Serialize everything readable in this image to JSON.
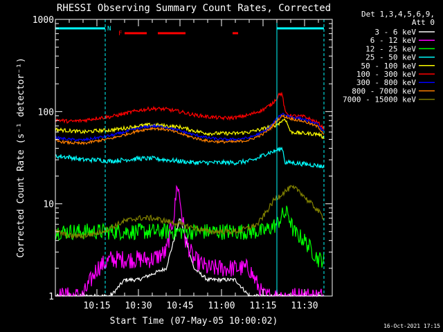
{
  "chart_data": {
    "type": "line",
    "title": "RHESSI Observing Summary Count Rates, Corrected",
    "xlabel": "Start Time (07-May-05 10:00:02)",
    "ylabel": "Corrected Count Rate (s⁻¹ detector⁻¹)",
    "y_scale": "log",
    "ylim": [
      1,
      1000
    ],
    "xlim_minutes": [
      0,
      100
    ],
    "y_ticks": [
      "1",
      "10",
      "100",
      "1000"
    ],
    "x_ticks": [
      {
        "label": "10:15",
        "m": 15
      },
      {
        "label": "10:30",
        "m": 30
      },
      {
        "label": "10:45",
        "m": 45
      },
      {
        "label": "11:00",
        "m": 60
      },
      {
        "label": "11:15",
        "m": 75
      },
      {
        "label": "11:30",
        "m": 90
      }
    ],
    "legend_header": [
      "Det 1,3,4,5,6,9,",
      "Att 0"
    ],
    "footer": "16-Oct-2021 17:15",
    "annotations": {
      "night_label": "N",
      "flare_label": "F"
    },
    "night_segments": [
      [
        0,
        18
      ],
      [
        80,
        97
      ]
    ],
    "flare_segments": [
      [
        25,
        33
      ],
      [
        37,
        47
      ],
      [
        64,
        66
      ]
    ],
    "series": [
      {
        "name": "3 - 6 keV",
        "color": "#ffffff",
        "x": [
          0,
          10,
          15,
          20,
          25,
          30,
          40,
          45,
          50,
          55,
          60,
          65,
          70,
          75,
          80,
          85,
          90,
          95,
          97
        ],
        "y": [
          1,
          1,
          1,
          1,
          1.5,
          1.5,
          2,
          7,
          2,
          1.5,
          1.5,
          1.5,
          1,
          1,
          1,
          1,
          1,
          1,
          1
        ]
      },
      {
        "name": "6 - 12 keV",
        "color": "#ff00ff",
        "x": [
          0,
          10,
          15,
          20,
          25,
          30,
          35,
          40,
          43,
          44,
          45,
          47,
          50,
          55,
          60,
          65,
          70,
          75,
          80,
          85,
          90,
          95,
          97
        ],
        "y": [
          1,
          1,
          2,
          2.5,
          2.5,
          2.5,
          2.5,
          3,
          8,
          17,
          11,
          4,
          2.5,
          2,
          2,
          2,
          2,
          1,
          1,
          1,
          1,
          1,
          1
        ]
      },
      {
        "name": "12 - 25 keV",
        "color": "#00ff00",
        "x": [
          0,
          10,
          15,
          20,
          25,
          30,
          35,
          40,
          45,
          50,
          55,
          60,
          65,
          70,
          75,
          80,
          82,
          84,
          86,
          90,
          95,
          97
        ],
        "y": [
          5,
          5,
          5,
          5,
          5,
          5,
          5,
          5,
          5,
          5,
          5,
          5,
          5,
          5,
          5,
          6,
          7.5,
          8,
          5,
          4,
          2.5,
          2.5
        ]
      },
      {
        "name": "25 - 50 keV",
        "color": "#00ffff",
        "x": [
          0,
          5,
          10,
          15,
          20,
          25,
          30,
          35,
          40,
          45,
          50,
          55,
          60,
          65,
          70,
          73,
          76,
          79,
          82,
          83,
          85,
          90,
          95,
          97
        ],
        "y": [
          33,
          32,
          30,
          30,
          29,
          30,
          31,
          31,
          30,
          29,
          28,
          28,
          28,
          28,
          29,
          31,
          35,
          37,
          40,
          28,
          28,
          27,
          26,
          25
        ]
      },
      {
        "name": "50 - 100 keV",
        "color": "#ffff00",
        "x": [
          0,
          5,
          10,
          15,
          20,
          25,
          30,
          35,
          40,
          45,
          50,
          55,
          60,
          65,
          70,
          75,
          80,
          83,
          85,
          90,
          95,
          97
        ],
        "y": [
          64,
          62,
          60,
          62,
          63,
          66,
          70,
          72,
          70,
          68,
          62,
          58,
          58,
          58,
          60,
          65,
          72,
          84,
          60,
          58,
          57,
          52
        ]
      },
      {
        "name": "100 - 300 keV",
        "color": "#ff0000",
        "x": [
          0,
          5,
          10,
          15,
          20,
          25,
          30,
          35,
          40,
          45,
          50,
          55,
          60,
          65,
          70,
          75,
          78,
          80,
          81,
          82,
          83,
          85,
          90,
          95,
          97
        ],
        "y": [
          82,
          78,
          80,
          85,
          88,
          95,
          103,
          108,
          106,
          100,
          92,
          88,
          85,
          86,
          92,
          105,
          120,
          140,
          158,
          150,
          98,
          90,
          88,
          75,
          65
        ]
      },
      {
        "name": "300 - 800 keV",
        "color": "#0000ff",
        "x": [
          0,
          5,
          10,
          15,
          20,
          25,
          30,
          35,
          40,
          45,
          50,
          55,
          60,
          65,
          70,
          75,
          78,
          80,
          82,
          85,
          90,
          95,
          97
        ],
        "y": [
          52,
          50,
          49,
          52,
          55,
          60,
          66,
          70,
          68,
          62,
          56,
          52,
          50,
          50,
          52,
          60,
          70,
          84,
          95,
          88,
          82,
          72,
          60
        ]
      },
      {
        "name": "800 - 7000 keV",
        "color": "#ff8000",
        "x": [
          0,
          5,
          10,
          15,
          20,
          25,
          30,
          35,
          40,
          45,
          50,
          55,
          60,
          65,
          70,
          75,
          78,
          80,
          82,
          85,
          90,
          95,
          97
        ],
        "y": [
          48,
          46,
          45,
          48,
          51,
          56,
          62,
          66,
          64,
          58,
          52,
          48,
          47,
          47,
          49,
          57,
          67,
          80,
          90,
          84,
          78,
          68,
          57
        ]
      },
      {
        "name": "7000 - 15000 keV",
        "color": "#808000",
        "x": [
          0,
          5,
          10,
          15,
          20,
          25,
          30,
          35,
          40,
          45,
          50,
          55,
          60,
          65,
          70,
          73,
          76,
          79,
          82,
          85,
          88,
          91,
          94,
          97
        ],
        "y": [
          5,
          4.5,
          4.5,
          4.8,
          5.5,
          6.5,
          7,
          7,
          6.5,
          6,
          5.5,
          5,
          5,
          5,
          5.5,
          6,
          8,
          11,
          13,
          15,
          14,
          11,
          9,
          7
        ]
      }
    ]
  }
}
